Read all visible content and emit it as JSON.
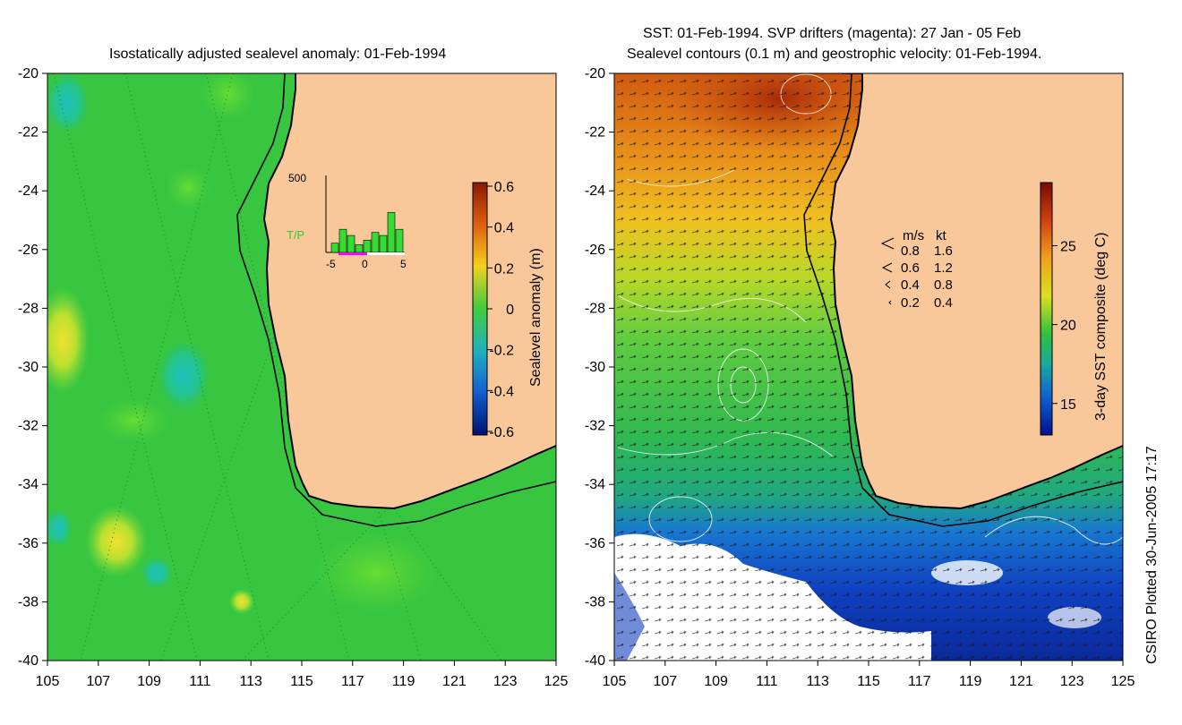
{
  "left_panel": {
    "title": "Isostatically adjusted sealevel anomaly: 01-Feb-1994",
    "lat_ticks": [
      "-20",
      "-22",
      "-24",
      "-26",
      "-28",
      "-30",
      "-32",
      "-34",
      "-36",
      "-38",
      "-40"
    ],
    "lon_ticks": [
      "105",
      "107",
      "109",
      "111",
      "113",
      "115",
      "117",
      "119",
      "121",
      "123",
      "125"
    ],
    "colorbar": {
      "label": "Sealevel anomaly (m)",
      "ticks": [
        "0.6",
        "0.4",
        "0.2",
        "0",
        "-0.2",
        "-0.4",
        "-0.6"
      ],
      "range": [
        -0.6,
        0.6
      ]
    },
    "inset": {
      "ymax_label": "500",
      "series_label": "T/P",
      "x_ticks": [
        "-5",
        "0",
        "5"
      ],
      "bars": [
        60,
        150,
        110,
        50,
        80,
        130,
        110,
        260,
        150
      ]
    }
  },
  "right_panel": {
    "title_line1": "SST: 01-Feb-1994. SVP drifters (magenta): 27 Jan - 05 Feb",
    "title_line2": "Sealevel contours (0.1 m) and geostrophic velocity: 01-Feb-1994.",
    "lat_ticks": [
      "-20",
      "-22",
      "-24",
      "-26",
      "-28",
      "-30",
      "-32",
      "-34",
      "-36",
      "-38",
      "-40"
    ],
    "lon_ticks": [
      "105",
      "107",
      "109",
      "111",
      "113",
      "115",
      "117",
      "119",
      "121",
      "123",
      "125"
    ],
    "velocity_legend": {
      "header_ms": "m/s",
      "header_kt": "kt",
      "rows": [
        {
          "ms": "0.8",
          "kt": "1.6"
        },
        {
          "ms": "0.6",
          "kt": "1.2"
        },
        {
          "ms": "0.4",
          "kt": "0.8"
        },
        {
          "ms": "0.2",
          "kt": "0.4"
        }
      ]
    },
    "colorbar": {
      "label": "3-day SST composite (deg C)",
      "ticks": [
        "25",
        "20",
        "15"
      ],
      "range": [
        13,
        29
      ]
    }
  },
  "credit": "CSIRO Plotted 30-Jun-2005 17:17",
  "colors": {
    "land": "#f9c89a",
    "coast": "#000000",
    "sla_background": "#33cc44",
    "sst_warm": "#c23a10",
    "sst_cool": "#1060cc",
    "drifters": "#ff00ff"
  }
}
